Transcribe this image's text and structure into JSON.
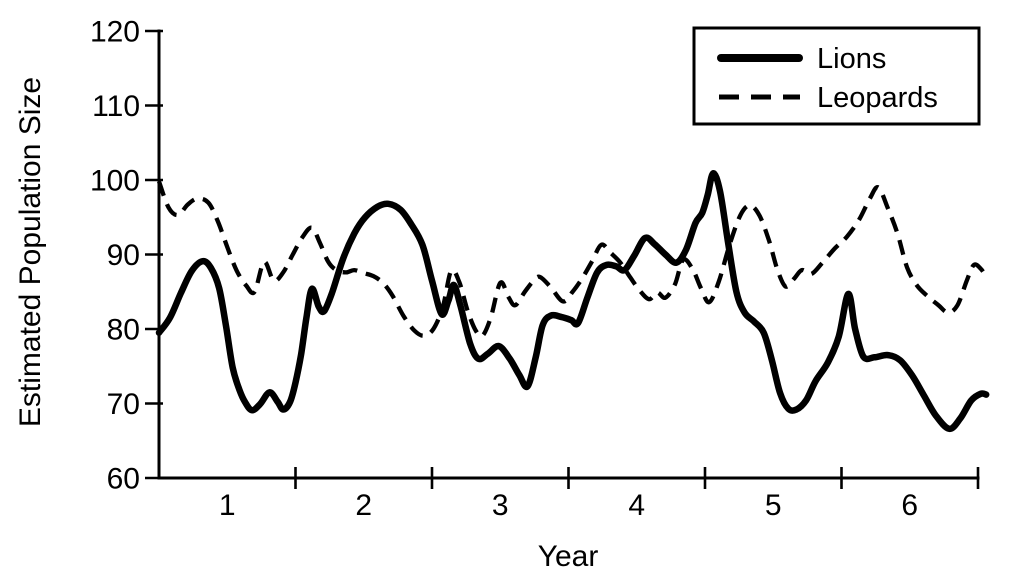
{
  "chart_data": {
    "type": "line",
    "title": "",
    "xlabel": "Year",
    "ylabel": "Estimated Population Size",
    "grid": false,
    "background_color": "#ffffff",
    "line_color": "#000000",
    "x_axis": {
      "range": [
        0.5,
        6.5
      ],
      "tick_marks": [
        1.5,
        2.5,
        3.5,
        4.5,
        5.5,
        6.5
      ],
      "tick_labels": [
        {
          "text": "1",
          "pos": 1
        },
        {
          "text": "2",
          "pos": 2
        },
        {
          "text": "3",
          "pos": 3
        },
        {
          "text": "4",
          "pos": 4
        },
        {
          "text": "5",
          "pos": 5
        },
        {
          "text": "6",
          "pos": 6
        }
      ]
    },
    "y_axis": {
      "range": [
        60,
        120
      ],
      "ticks": [
        {
          "text": "120",
          "value": 120
        },
        {
          "text": "110",
          "value": 110
        },
        {
          "text": "100",
          "value": 100
        },
        {
          "text": "90",
          "value": 90
        },
        {
          "text": "80",
          "value": 80
        },
        {
          "text": "70",
          "value": 70
        },
        {
          "text": "60",
          "value": 60
        }
      ]
    },
    "legend": {
      "position": "top-right",
      "items": [
        {
          "label": "Lions",
          "line_style": "solid"
        },
        {
          "label": "Leopards",
          "line_style": "dashed"
        }
      ]
    },
    "series": [
      {
        "name": "Lions",
        "line_style": "solid",
        "points": [
          [
            0.5,
            79.5
          ],
          [
            0.58,
            81.5
          ],
          [
            0.66,
            84.8
          ],
          [
            0.74,
            87.8
          ],
          [
            0.82,
            89.1
          ],
          [
            0.88,
            88.2
          ],
          [
            0.94,
            85.5
          ],
          [
            0.99,
            80.5
          ],
          [
            1.04,
            74.8
          ],
          [
            1.09,
            71.8
          ],
          [
            1.13,
            70.2
          ],
          [
            1.18,
            69.1
          ],
          [
            1.24,
            69.9
          ],
          [
            1.31,
            71.5
          ],
          [
            1.37,
            70.2
          ],
          [
            1.41,
            69.2
          ],
          [
            1.46,
            70.2
          ],
          [
            1.5,
            72.8
          ],
          [
            1.54,
            76.5
          ],
          [
            1.58,
            81.5
          ],
          [
            1.62,
            85.4
          ],
          [
            1.67,
            83.0
          ],
          [
            1.71,
            82.4
          ],
          [
            1.77,
            85.0
          ],
          [
            1.85,
            89.5
          ],
          [
            1.93,
            92.8
          ],
          [
            2.01,
            95.0
          ],
          [
            2.1,
            96.4
          ],
          [
            2.18,
            96.8
          ],
          [
            2.27,
            96.0
          ],
          [
            2.35,
            94.0
          ],
          [
            2.43,
            91.3
          ],
          [
            2.5,
            86.5
          ],
          [
            2.57,
            82.0
          ],
          [
            2.62,
            83.8
          ],
          [
            2.66,
            85.9
          ],
          [
            2.71,
            83.0
          ],
          [
            2.78,
            78.0
          ],
          [
            2.84,
            76.0
          ],
          [
            2.91,
            76.7
          ],
          [
            2.99,
            77.7
          ],
          [
            3.07,
            76.0
          ],
          [
            3.14,
            73.8
          ],
          [
            3.2,
            72.3
          ],
          [
            3.26,
            76.2
          ],
          [
            3.31,
            80.5
          ],
          [
            3.37,
            81.8
          ],
          [
            3.45,
            81.6
          ],
          [
            3.52,
            81.2
          ],
          [
            3.57,
            80.8
          ],
          [
            3.64,
            84.3
          ],
          [
            3.71,
            87.6
          ],
          [
            3.78,
            88.6
          ],
          [
            3.85,
            88.4
          ],
          [
            3.91,
            87.9
          ],
          [
            3.98,
            89.8
          ],
          [
            4.06,
            92.2
          ],
          [
            4.13,
            91.4
          ],
          [
            4.21,
            90.0
          ],
          [
            4.29,
            88.9
          ],
          [
            4.36,
            90.6
          ],
          [
            4.43,
            94.2
          ],
          [
            4.48,
            95.6
          ],
          [
            4.52,
            98.0
          ],
          [
            4.56,
            100.9
          ],
          [
            4.61,
            98.5
          ],
          [
            4.67,
            91.5
          ],
          [
            4.73,
            85.0
          ],
          [
            4.79,
            82.2
          ],
          [
            4.86,
            81.0
          ],
          [
            4.93,
            79.5
          ],
          [
            4.99,
            75.8
          ],
          [
            5.05,
            71.4
          ],
          [
            5.11,
            69.3
          ],
          [
            5.17,
            69.2
          ],
          [
            5.24,
            70.4
          ],
          [
            5.31,
            73.0
          ],
          [
            5.4,
            75.5
          ],
          [
            5.48,
            79.0
          ],
          [
            5.55,
            84.7
          ],
          [
            5.6,
            80.0
          ],
          [
            5.66,
            76.3
          ],
          [
            5.74,
            76.2
          ],
          [
            5.84,
            76.5
          ],
          [
            5.93,
            75.8
          ],
          [
            6.02,
            73.7
          ],
          [
            6.1,
            71.2
          ],
          [
            6.19,
            68.4
          ],
          [
            6.29,
            66.6
          ],
          [
            6.37,
            68.0
          ],
          [
            6.45,
            70.4
          ],
          [
            6.52,
            71.3
          ],
          [
            6.56,
            71.2
          ]
        ]
      },
      {
        "name": "Leopards",
        "line_style": "dashed",
        "points": [
          [
            0.5,
            99.8
          ],
          [
            0.57,
            96.3
          ],
          [
            0.64,
            95.3
          ],
          [
            0.71,
            96.7
          ],
          [
            0.78,
            97.5
          ],
          [
            0.86,
            97.0
          ],
          [
            0.93,
            94.5
          ],
          [
            1.0,
            91.0
          ],
          [
            1.07,
            87.8
          ],
          [
            1.14,
            85.8
          ],
          [
            1.2,
            85.0
          ],
          [
            1.27,
            89.0
          ],
          [
            1.34,
            86.5
          ],
          [
            1.41,
            87.6
          ],
          [
            1.48,
            90.0
          ],
          [
            1.55,
            92.3
          ],
          [
            1.62,
            93.6
          ],
          [
            1.68,
            91.5
          ],
          [
            1.74,
            89.0
          ],
          [
            1.8,
            87.9
          ],
          [
            1.87,
            87.6
          ],
          [
            1.93,
            87.9
          ],
          [
            2.0,
            87.5
          ],
          [
            2.07,
            87.1
          ],
          [
            2.14,
            86.2
          ],
          [
            2.21,
            84.5
          ],
          [
            2.29,
            81.8
          ],
          [
            2.37,
            79.8
          ],
          [
            2.44,
            79.1
          ],
          [
            2.51,
            80.0
          ],
          [
            2.58,
            83.0
          ],
          [
            2.64,
            87.8
          ],
          [
            2.7,
            86.3
          ],
          [
            2.76,
            82.5
          ],
          [
            2.82,
            79.8
          ],
          [
            2.87,
            79.1
          ],
          [
            2.93,
            81.5
          ],
          [
            3.0,
            86.2
          ],
          [
            3.06,
            84.3
          ],
          [
            3.11,
            83.2
          ],
          [
            3.18,
            85.0
          ],
          [
            3.24,
            86.4
          ],
          [
            3.29,
            87.0
          ],
          [
            3.37,
            85.6
          ],
          [
            3.46,
            83.7
          ],
          [
            3.53,
            85.0
          ],
          [
            3.6,
            86.8
          ],
          [
            3.67,
            89.0
          ],
          [
            3.74,
            91.3
          ],
          [
            3.81,
            90.2
          ],
          [
            3.88,
            88.9
          ],
          [
            3.95,
            87.0
          ],
          [
            4.02,
            85.2
          ],
          [
            4.09,
            84.0
          ],
          [
            4.15,
            84.9
          ],
          [
            4.21,
            84.2
          ],
          [
            4.28,
            86.0
          ],
          [
            4.34,
            89.3
          ],
          [
            4.41,
            88.0
          ],
          [
            4.47,
            85.5
          ],
          [
            4.53,
            83.6
          ],
          [
            4.6,
            86.3
          ],
          [
            4.68,
            91.3
          ],
          [
            4.76,
            95.3
          ],
          [
            4.83,
            96.6
          ],
          [
            4.9,
            95.2
          ],
          [
            4.97,
            91.8
          ],
          [
            5.03,
            88.0
          ],
          [
            5.09,
            85.7
          ],
          [
            5.15,
            86.7
          ],
          [
            5.21,
            87.9
          ],
          [
            5.28,
            87.4
          ],
          [
            5.36,
            88.9
          ],
          [
            5.45,
            90.8
          ],
          [
            5.54,
            92.4
          ],
          [
            5.63,
            94.7
          ],
          [
            5.71,
            97.6
          ],
          [
            5.77,
            99.0
          ],
          [
            5.84,
            96.2
          ],
          [
            5.91,
            92.8
          ],
          [
            5.98,
            88.3
          ],
          [
            6.05,
            85.9
          ],
          [
            6.13,
            84.4
          ],
          [
            6.21,
            83.2
          ],
          [
            6.28,
            82.2
          ],
          [
            6.35,
            83.2
          ],
          [
            6.42,
            86.6
          ],
          [
            6.47,
            88.6
          ],
          [
            6.52,
            88.1
          ],
          [
            6.56,
            87.0
          ]
        ]
      }
    ]
  }
}
